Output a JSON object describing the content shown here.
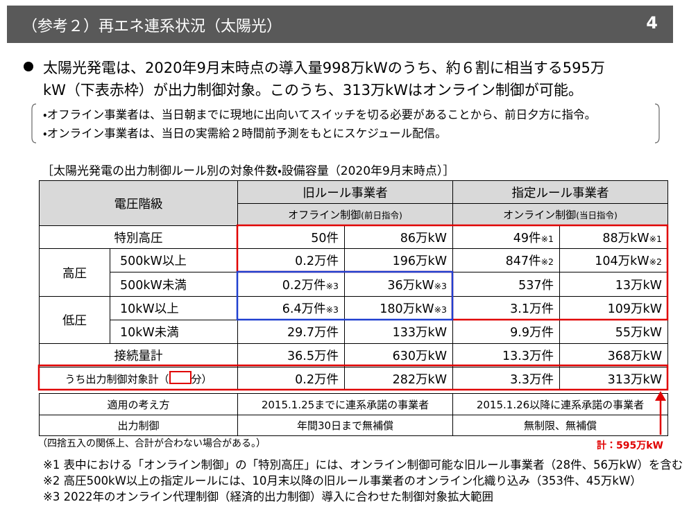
{
  "header": {
    "title": "（参考２）再エネ連系状況（太陽光）",
    "page": "4"
  },
  "summary": {
    "lines": [
      "太陽光発電は、2020年9月末時点の導入量998万kWのうち、約６割に相当する595万",
      "kW（下表赤枠）が出力制御対象。このうち、313万kWはオンライン制御が可能。"
    ]
  },
  "notes": {
    "lines": [
      "・オフライン事業者は、当日朝までに現地に出向いてスイッチを切る必要があることから、前日夕方に指令。",
      "・オンライン事業者は、当日の実需給２時間前予測をもとにスケジュール配信。"
    ]
  },
  "table": {
    "caption": "［太陽光発電の出力制御ルール別の対象件数・設備容量（2020年9月末時点）］",
    "head": {
      "voltage": "電圧階級",
      "old": "旧ルール事業者",
      "old_sub": "オフライン制御",
      "old_sub_note": "(前日指令)",
      "new": "指定ルール事業者",
      "new_sub": "オンライン制御",
      "new_sub_note": "(当日指令)"
    },
    "groups": {
      "high": "高圧",
      "low": "低圧"
    },
    "rows": [
      {
        "label": "特別高圧",
        "cells": [
          "50件",
          "86万kW",
          {
            "text": "49件",
            "note": "※1"
          },
          {
            "text": "88万kW",
            "note": "※1"
          }
        ]
      },
      {
        "label": "500kW以上",
        "cells": [
          "0.2万件",
          "196万kW",
          {
            "text": "847件",
            "note": "※2"
          },
          {
            "text": "104万kW",
            "note": "※2"
          }
        ]
      },
      {
        "label": "500kW未満",
        "cells": [
          {
            "text": "0.2万件",
            "note": "※3"
          },
          {
            "text": "36万kW",
            "note": "※3"
          },
          "537件",
          "13万kW"
        ]
      },
      {
        "label": "10kW以上",
        "cells": [
          {
            "text": "6.4万件",
            "note": "※3"
          },
          {
            "text": "180万kW",
            "note": "※3"
          },
          "3.1万件",
          "109万kW"
        ]
      },
      {
        "label": "10kW未満",
        "cells": [
          "29.7万件",
          "133万kW",
          "9.9万件",
          "55万kW"
        ]
      },
      {
        "label": "接続量計",
        "cells": [
          "36.5万件",
          "630万kW",
          "13.3万件",
          "368万kW"
        ]
      },
      {
        "label_pre": "うち出力制御対象計（",
        "label_post": "分）",
        "cells": [
          "0.2万件",
          "282万kW",
          "3.3万件",
          "313万kW"
        ]
      }
    ]
  },
  "rules": {
    "rows": [
      [
        "適用の考え方",
        "2015.1.25までに連系承諾の事業者",
        "2015.1.26以降に連系承諾の事業者"
      ],
      [
        "出力制御",
        "年間30日まで無補償",
        "無制限、無補償"
      ]
    ]
  },
  "total_annotation": "計：595万kW",
  "footnotes": {
    "rounding": "（四捨五入の関係上、合計が合わない場合がある。）",
    "items": [
      "※1 表中における「オンライン制御」の「特別高圧」には、オンライン制御可能な旧ルール事業者（28件、56万kW）を含む",
      "※2 高圧500kW以上の指定ルールには、10月末以降の旧ルール事業者のオンライン化織り込み（353件、45万kW）",
      "※3 2022年のオンライン代理制御（経済的出力制御）導入に合わせた制御対象拡大範囲"
    ]
  }
}
